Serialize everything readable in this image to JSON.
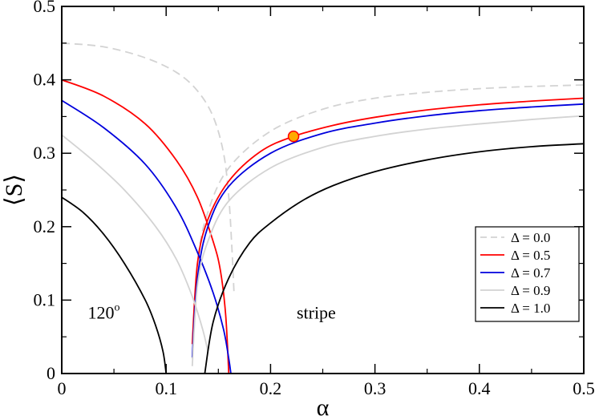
{
  "chart_data": {
    "type": "line",
    "title": "",
    "xlabel": "α",
    "ylabel": "⟨S⟩",
    "xlim": [
      0,
      0.5
    ],
    "ylim": [
      0,
      0.5
    ],
    "x_ticks": [
      "0",
      "0.1",
      "0.2",
      "0.3",
      "0.4",
      "0.5"
    ],
    "y_ticks": [
      "0",
      "0.1",
      "0.2",
      "0.3",
      "0.4",
      "0.5"
    ],
    "legend_position": "center-right",
    "series": [
      {
        "name": "Δ = 0.0",
        "color": "#d3d3d3",
        "dashed": true,
        "left_branch": {
          "x": [
            0,
            0.04,
            0.08,
            0.11,
            0.13,
            0.145,
            0.155,
            0.16,
            0.163,
            0.165
          ],
          "y": [
            0.45,
            0.445,
            0.43,
            0.41,
            0.385,
            0.35,
            0.3,
            0.24,
            0.17,
            0.11
          ]
        },
        "right_branch": {
          "x": [
            0.125,
            0.13,
            0.14,
            0.16,
            0.2,
            0.25,
            0.3,
            0.35,
            0.4,
            0.45,
            0.5
          ],
          "y": [
            0.02,
            0.15,
            0.22,
            0.28,
            0.33,
            0.36,
            0.375,
            0.383,
            0.388,
            0.391,
            0.393
          ]
        }
      },
      {
        "name": "Δ = 0.5",
        "color": "#ff0000",
        "dashed": false,
        "left_branch": {
          "x": [
            0,
            0.04,
            0.08,
            0.11,
            0.13,
            0.145,
            0.152,
            0.157,
            0.16
          ],
          "y": [
            0.4,
            0.378,
            0.34,
            0.29,
            0.24,
            0.18,
            0.14,
            0.08,
            0.0
          ]
        },
        "right_branch": {
          "x": [
            0.125,
            0.13,
            0.14,
            0.16,
            0.19,
            0.22,
            0.26,
            0.3,
            0.35,
            0.4,
            0.45,
            0.5
          ],
          "y": [
            0.04,
            0.15,
            0.21,
            0.262,
            0.302,
            0.322,
            0.338,
            0.349,
            0.359,
            0.366,
            0.371,
            0.375
          ]
        }
      },
      {
        "name": "Δ = 0.7",
        "color": "#0000dd",
        "dashed": false,
        "left_branch": {
          "x": [
            0,
            0.04,
            0.08,
            0.11,
            0.13,
            0.145,
            0.155,
            0.16,
            0.162
          ],
          "y": [
            0.372,
            0.335,
            0.285,
            0.225,
            0.165,
            0.11,
            0.06,
            0.02,
            0.0
          ]
        },
        "right_branch": {
          "x": [
            0.125,
            0.13,
            0.14,
            0.16,
            0.2,
            0.25,
            0.3,
            0.35,
            0.4,
            0.45,
            0.5
          ],
          "y": [
            0.022,
            0.13,
            0.2,
            0.255,
            0.3,
            0.327,
            0.341,
            0.351,
            0.358,
            0.363,
            0.367
          ]
        }
      },
      {
        "name": "Δ = 0.9",
        "color": "#d3d3d3",
        "dashed": false,
        "left_branch": {
          "x": [
            0,
            0.03,
            0.06,
            0.09,
            0.11,
            0.125,
            0.135,
            0.14
          ],
          "y": [
            0.325,
            0.29,
            0.25,
            0.2,
            0.155,
            0.105,
            0.06,
            0.03
          ]
        },
        "right_branch": {
          "x": [
            0.125,
            0.13,
            0.14,
            0.16,
            0.2,
            0.25,
            0.3,
            0.35,
            0.4,
            0.45,
            0.5
          ],
          "y": [
            0.01,
            0.12,
            0.18,
            0.235,
            0.28,
            0.308,
            0.323,
            0.333,
            0.34,
            0.346,
            0.351
          ]
        }
      },
      {
        "name": "Δ = 1.0",
        "color": "#000000",
        "dashed": false,
        "left_branch": {
          "x": [
            0,
            0.02,
            0.04,
            0.06,
            0.08,
            0.09,
            0.097,
            0.1
          ],
          "y": [
            0.24,
            0.22,
            0.19,
            0.15,
            0.1,
            0.065,
            0.03,
            0.0
          ]
        },
        "right_branch": {
          "x": [
            0.137,
            0.145,
            0.16,
            0.18,
            0.2,
            0.23,
            0.26,
            0.3,
            0.35,
            0.4,
            0.45,
            0.5
          ],
          "y": [
            0.0,
            0.07,
            0.13,
            0.178,
            0.205,
            0.235,
            0.256,
            0.275,
            0.291,
            0.302,
            0.309,
            0.313
          ]
        }
      }
    ],
    "marker": {
      "x": 0.222,
      "y": 0.323,
      "fill": "#ffaa00",
      "stroke": "#ff0000"
    },
    "annotations": [
      {
        "id": "phase-120",
        "text": "120",
        "superscript": "o",
        "x": 0.025,
        "y": 0.075
      },
      {
        "id": "phase-stripe",
        "text": "stripe",
        "x": 0.225,
        "y": 0.075
      }
    ]
  }
}
